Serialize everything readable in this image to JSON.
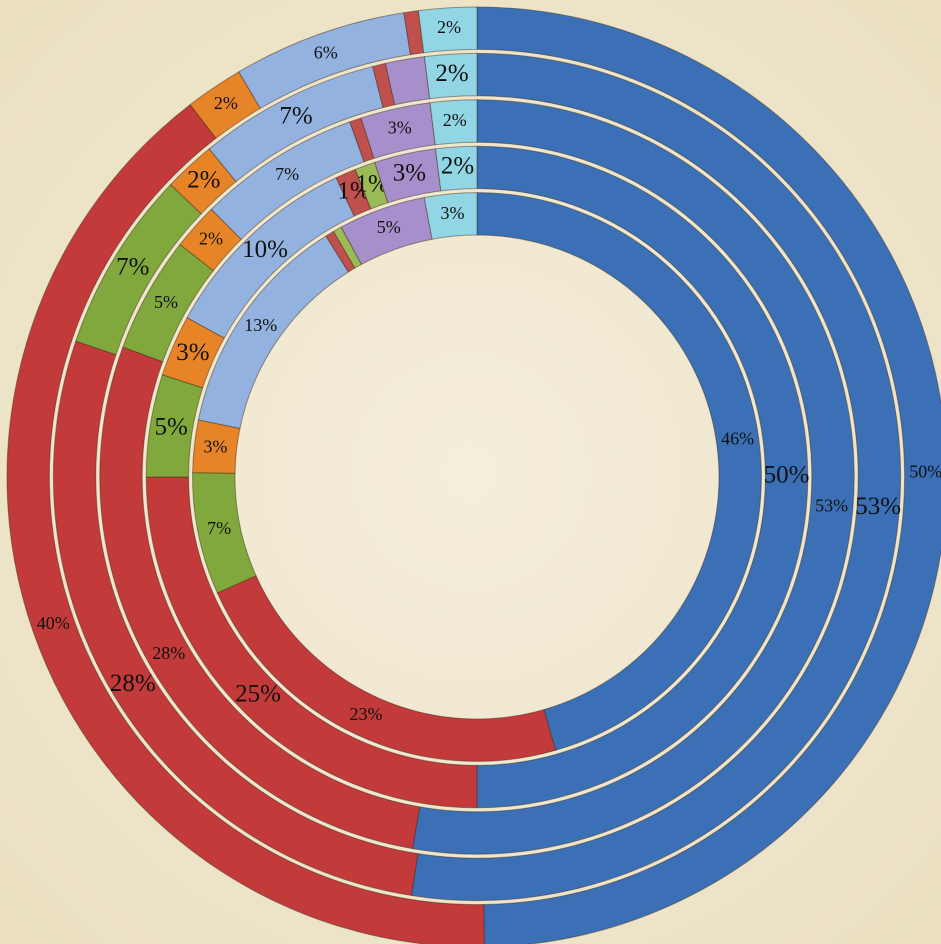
{
  "chart_data": {
    "type": "doughnut",
    "colors": [
      "#3b70b6",
      "#c23a3a",
      "#80a83c",
      "#e88428",
      "#93b2e0",
      "#c0504d",
      "#9bbb59",
      "#a68fca",
      "#92d6e6"
    ],
    "series": [
      {
        "values": [
          50,
          40,
          0,
          2,
          6,
          0.5,
          0,
          0,
          2
        ],
        "value_labels": [
          "50%",
          "40%",
          null,
          "2%",
          "6%",
          null,
          null,
          null,
          "2%"
        ]
      },
      {
        "values": [
          53,
          28,
          7,
          2,
          7,
          0.5,
          0,
          1.5,
          2
        ],
        "value_labels": [
          "53%",
          "28%",
          "7%",
          "2%",
          "7%",
          null,
          null,
          null,
          "2%"
        ]
      },
      {
        "values": [
          53,
          28,
          5,
          2,
          7,
          0.5,
          0,
          3,
          2
        ],
        "value_labels": [
          "53%",
          "28%",
          "5%",
          "2%",
          "7%",
          null,
          null,
          "3%",
          "2%"
        ]
      },
      {
        "values": [
          50,
          25,
          5,
          3,
          10,
          1,
          1,
          3,
          2
        ],
        "value_labels": [
          "50%",
          "25%",
          "5%",
          "3%",
          "10%",
          "1%",
          "1%",
          "3%",
          "2%"
        ]
      },
      {
        "values": [
          46,
          23,
          7,
          3,
          13,
          0.5,
          0.5,
          5,
          3
        ],
        "value_labels": [
          "46%",
          "23%",
          "7%",
          "3%",
          "13%",
          null,
          null,
          "5%",
          "3%"
        ]
      }
    ]
  }
}
